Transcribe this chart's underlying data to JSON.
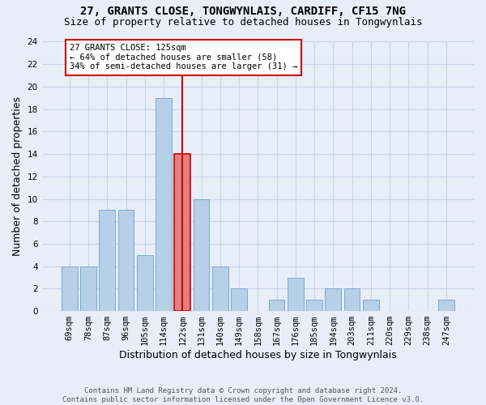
{
  "title1": "27, GRANTS CLOSE, TONGWYNLAIS, CARDIFF, CF15 7NG",
  "title2": "Size of property relative to detached houses in Tongwynlais",
  "xlabel": "Distribution of detached houses by size in Tongwynlais",
  "ylabel": "Number of detached properties",
  "categories": [
    "69sqm",
    "78sqm",
    "87sqm",
    "96sqm",
    "105sqm",
    "114sqm",
    "122sqm",
    "131sqm",
    "140sqm",
    "149sqm",
    "158sqm",
    "167sqm",
    "176sqm",
    "185sqm",
    "194sqm",
    "203sqm",
    "211sqm",
    "220sqm",
    "229sqm",
    "238sqm",
    "247sqm"
  ],
  "bar_values": [
    4,
    4,
    9,
    9,
    5,
    19,
    14,
    10,
    4,
    2,
    0,
    1,
    3,
    1,
    2,
    2,
    1,
    0,
    0,
    0,
    1
  ],
  "bar_color": "#b8cfe8",
  "bar_edge_color": "#7aaad0",
  "highlight_index": 6,
  "highlight_bar_color": "#e08080",
  "highlight_bar_edge_color": "#cc0000",
  "annotation_text1": "27 GRANTS CLOSE: 125sqm",
  "annotation_text2": "← 64% of detached houses are smaller (58)",
  "annotation_text3": "34% of semi-detached houses are larger (31) →",
  "annotation_box_color": "#ffffff",
  "annotation_border_color": "#cc0000",
  "vline_color": "#cc0000",
  "ylim": [
    0,
    24
  ],
  "yticks": [
    0,
    2,
    4,
    6,
    8,
    10,
    12,
    14,
    16,
    18,
    20,
    22,
    24
  ],
  "grid_color": "#c8d4e8",
  "background_color": "#e8eef8",
  "footer_text": "Contains HM Land Registry data © Crown copyright and database right 2024.\nContains public sector information licensed under the Open Government Licence v3.0.",
  "title_fontsize": 10,
  "subtitle_fontsize": 9,
  "tick_fontsize": 7.5,
  "label_fontsize": 9
}
